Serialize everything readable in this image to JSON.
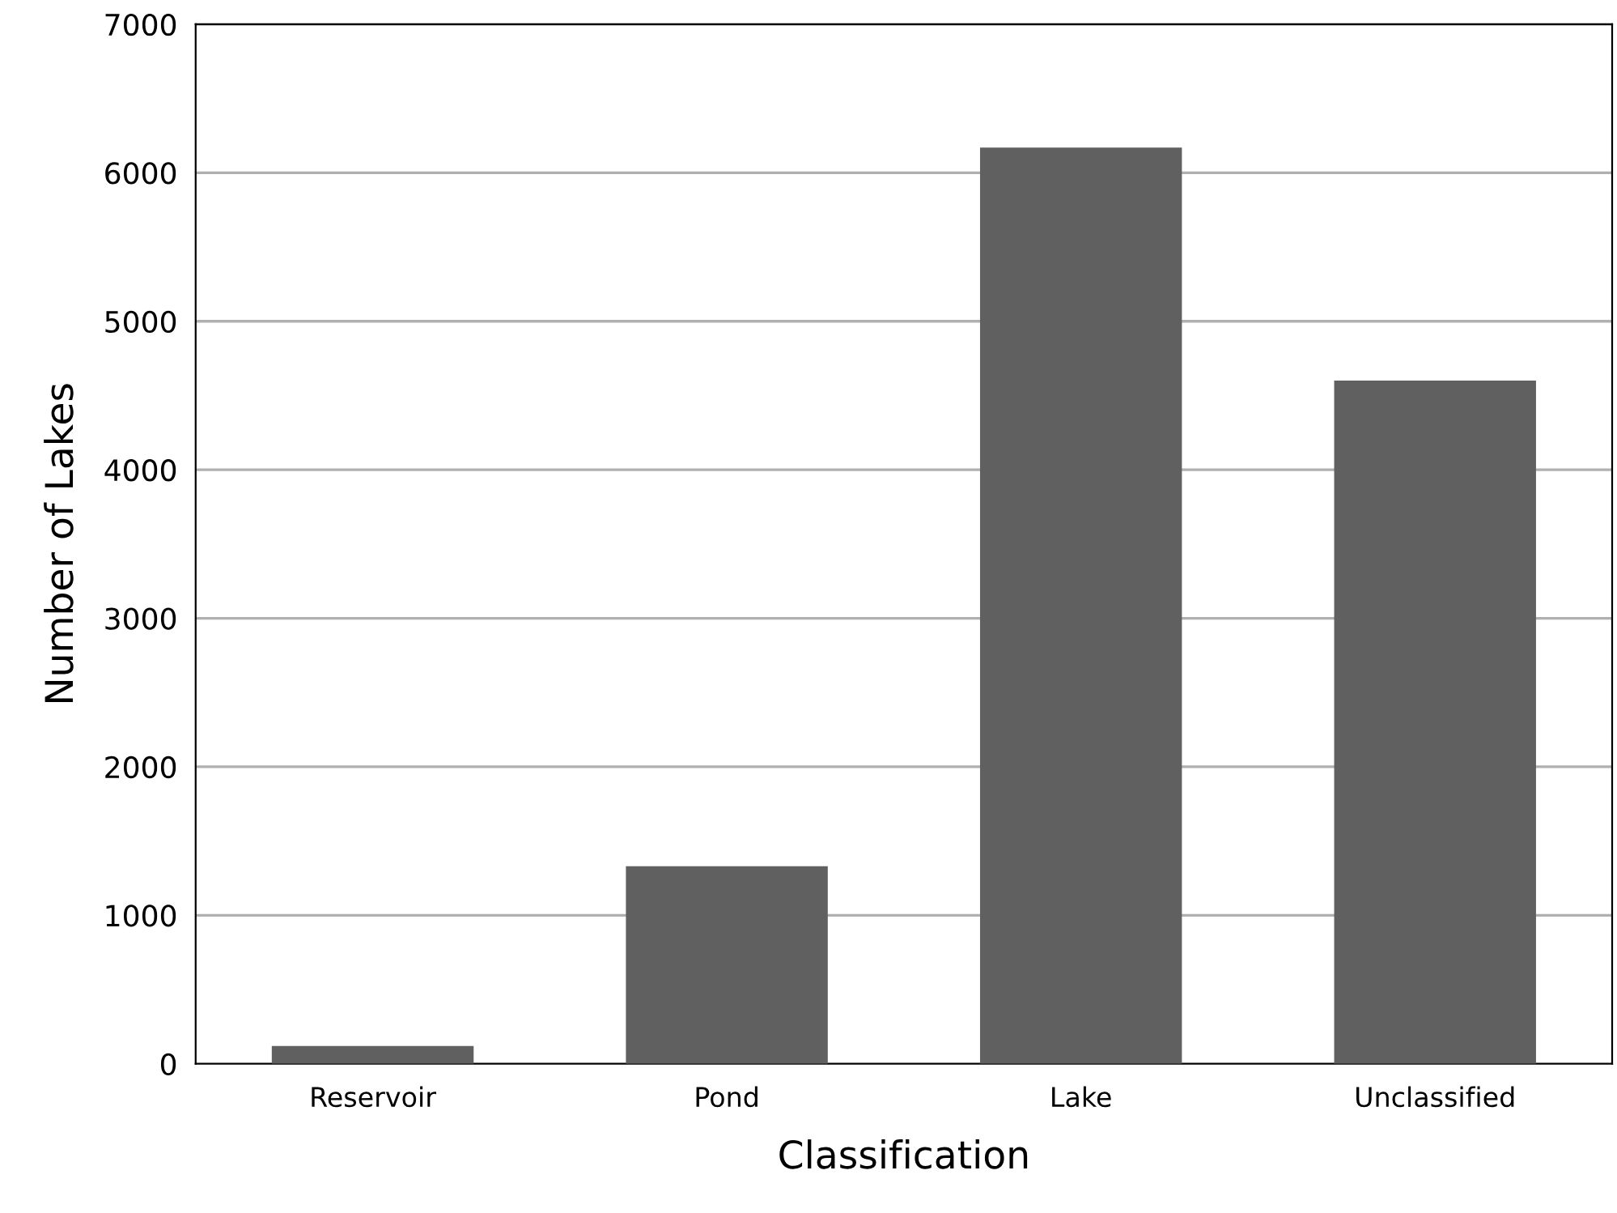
{
  "chart_data": {
    "type": "bar",
    "xlabel": "Classification",
    "ylabel": "Number of Lakes",
    "categories": [
      "Reservoir",
      "Pond",
      "Lake",
      "Unclassified"
    ],
    "values": [
      120,
      1330,
      6170,
      4600
    ],
    "color": "#606060",
    "ylim": [
      0,
      7000
    ],
    "yticks": [
      0,
      1000,
      2000,
      3000,
      4000,
      5000,
      6000,
      7000
    ],
    "grid": "y",
    "legend": false
  }
}
